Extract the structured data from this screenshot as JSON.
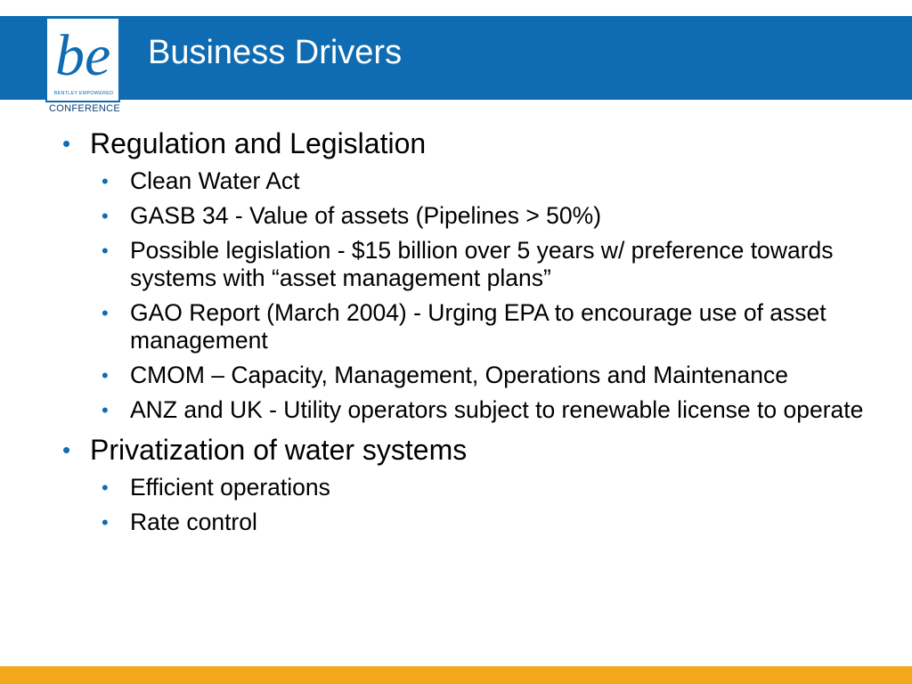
{
  "slide": {
    "title": "Business Drivers"
  },
  "logo": {
    "mark": "be",
    "tagline": "BENTLEY EMPOWERED",
    "conference": "CONFERENCE"
  },
  "bullets": [
    {
      "text": "Regulation and Legislation",
      "children": [
        "Clean Water Act",
        "GASB 34 - Value of assets (Pipelines > 50%)",
        "Possible legislation - $15 billion over 5 years w/ preference towards systems with “asset management plans”",
        "GAO Report (March 2004) - Urging EPA to encourage use of asset management",
        "CMOM – Capacity, Management, Operations and Maintenance",
        "ANZ and UK - Utility operators subject to renewable license to operate"
      ]
    },
    {
      "text": "Privatization of water systems",
      "children": [
        "Efficient operations",
        "Rate control"
      ]
    }
  ],
  "bullet_glyph": "•",
  "colors": {
    "header": "#0F6CB2",
    "footer": "#F3A81B",
    "bullet": "#0F6CB2"
  }
}
